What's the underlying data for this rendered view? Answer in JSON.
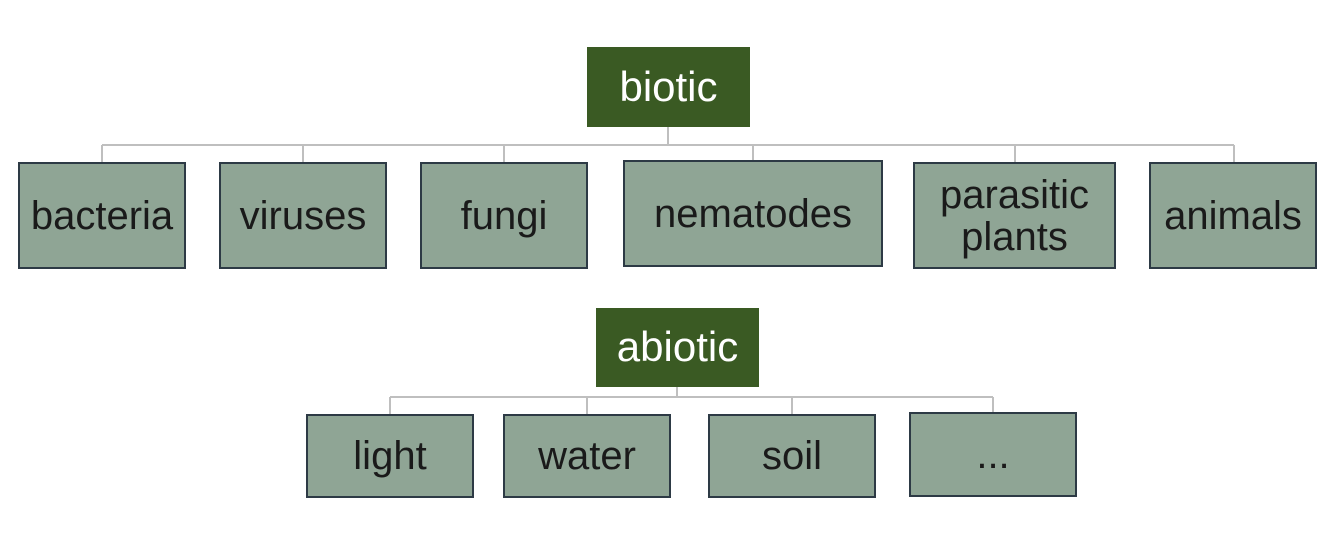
{
  "diagram": {
    "biotic": {
      "label": "biotic",
      "children": [
        "bacteria",
        "viruses",
        "fungi",
        "nematodes",
        "parasitic\nplants",
        "animals"
      ]
    },
    "abiotic": {
      "label": "abiotic",
      "children": [
        "light",
        "water",
        "soil",
        "..."
      ]
    },
    "colors": {
      "root_fill": "#3a5a23",
      "leaf_fill": "#8fa595",
      "leaf_border": "#2d3a45",
      "connector": "#bfbfbf"
    }
  }
}
